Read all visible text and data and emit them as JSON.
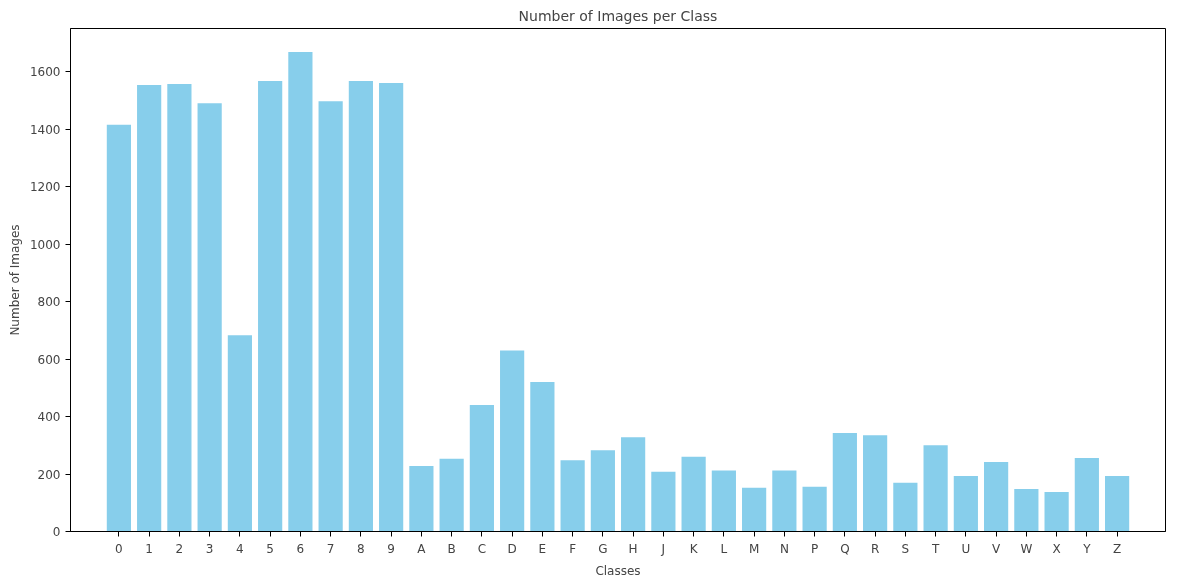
{
  "chart_data": {
    "type": "bar",
    "title": "Number of Images per Class",
    "xlabel": "Classes",
    "ylabel": "Number of Images",
    "categories": [
      "0",
      "1",
      "2",
      "3",
      "4",
      "5",
      "6",
      "7",
      "8",
      "9",
      "A",
      "B",
      "C",
      "D",
      "E",
      "F",
      "G",
      "H",
      "J",
      "K",
      "L",
      "M",
      "N",
      "P",
      "Q",
      "R",
      "S",
      "T",
      "U",
      "V",
      "W",
      "X",
      "Y",
      "Z"
    ],
    "values": [
      1415,
      1553,
      1557,
      1490,
      683,
      1567,
      1668,
      1497,
      1567,
      1560,
      228,
      253,
      440,
      630,
      520,
      248,
      283,
      328,
      208,
      260,
      212,
      152,
      212,
      156,
      343,
      335,
      170,
      300,
      193,
      242,
      148,
      137,
      256,
      193
    ],
    "color": "#87ceeb",
    "ylim": [
      0,
      1750
    ],
    "yticks": [
      0,
      200,
      400,
      600,
      800,
      1000,
      1200,
      1400,
      1600
    ],
    "grid": false
  }
}
